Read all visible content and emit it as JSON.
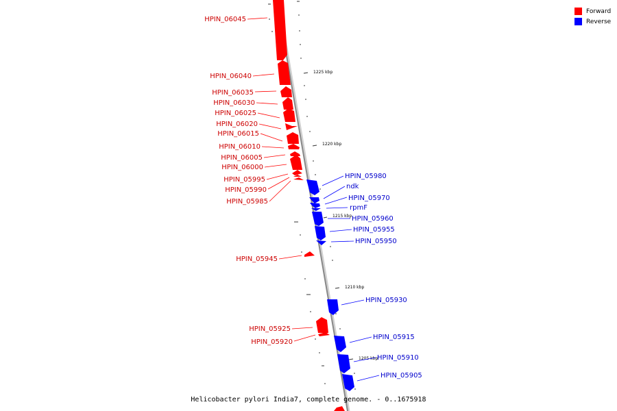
{
  "legend": {
    "forward_label": "Forward",
    "reverse_label": "Reverse",
    "forward_color": "#ff0000",
    "reverse_color": "#0000ff"
  },
  "caption": "Helicobacter pylori India7, complete genome. - 0..1675918",
  "scale": {
    "ticks": [
      "1225 kbp",
      "1220 kbp",
      "1215 kbp",
      "1210 kbp",
      "1205 kbp"
    ]
  },
  "genes": {
    "forward": [
      "HPIN_06045",
      "HPIN_06040",
      "HPIN_06035",
      "HPIN_06030",
      "HPIN_06025",
      "HPIN_06020",
      "HPIN_06015",
      "HPIN_06010",
      "HPIN_06005",
      "HPIN_06000",
      "HPIN_05995",
      "HPIN_05990",
      "HPIN_05985",
      "HPIN_05945",
      "HPIN_05925",
      "HPIN_05920"
    ],
    "reverse": [
      "HPIN_05980",
      "ndk",
      "HPIN_05970",
      "rpmF",
      "HPIN_05960",
      "HPIN_05955",
      "HPIN_05950",
      "HPIN_05930",
      "HPIN_05915",
      "HPIN_05910",
      "HPIN_05905"
    ]
  }
}
